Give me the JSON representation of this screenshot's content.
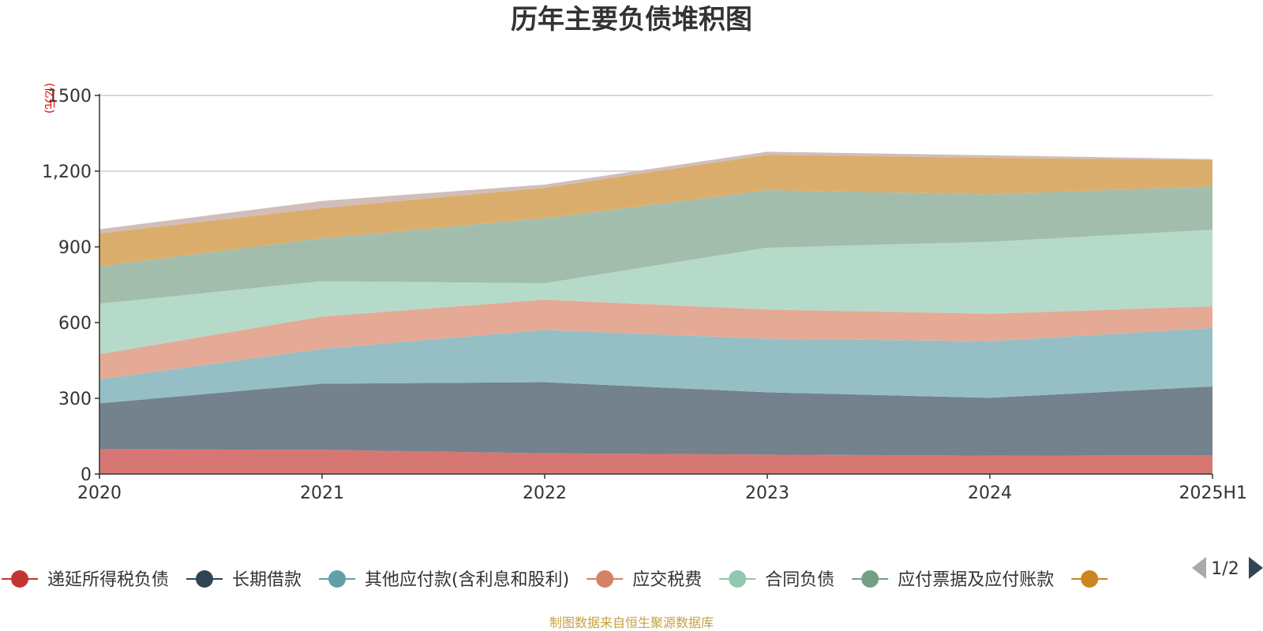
{
  "chart_data": {
    "type": "area",
    "stacked": true,
    "title": "历年主要负债堆积图",
    "ylabel": "(亿元)",
    "ylim": [
      0,
      1500
    ],
    "yticks": [
      0,
      300,
      600,
      900,
      1200,
      1500
    ],
    "ytick_labels": [
      "0",
      "300",
      "600",
      "900",
      "1,200",
      "1500"
    ],
    "categories": [
      "2020",
      "2021",
      "2022",
      "2023",
      "2024",
      "2025H1"
    ],
    "series": [
      {
        "name": "递延所得税负债",
        "values": [
          98,
          96,
          82,
          77,
          73,
          75
        ],
        "color": "#c23531",
        "fill": "#d4706c"
      },
      {
        "name": "长期借款",
        "values": [
          182,
          262,
          282,
          247,
          229,
          272
        ],
        "color": "#2f4554",
        "fill": "#6d7b87"
      },
      {
        "name": "其他应付款(含利息和股利)",
        "values": [
          95,
          138,
          207,
          212,
          224,
          232
        ],
        "color": "#61a0a8",
        "fill": "#90bcc2"
      },
      {
        "name": "应交税费",
        "values": [
          100,
          128,
          120,
          116,
          109,
          86
        ],
        "color": "#d48265",
        "fill": "#e3a590"
      },
      {
        "name": "合同负债",
        "values": [
          200,
          140,
          65,
          245,
          285,
          303
        ],
        "color": "#91c7ae",
        "fill": "#b2d8c6"
      },
      {
        "name": "应付票据及应付账款",
        "values": [
          148,
          170,
          258,
          228,
          188,
          172
        ],
        "color": "#749f83",
        "fill": "#9db9a6"
      },
      {
        "name": "",
        "values": [
          130,
          120,
          120,
          140,
          145,
          104
        ],
        "color": "#ca8622",
        "fill": "#d9a964"
      },
      {
        "name": "",
        "values": [
          17,
          28,
          13,
          12,
          10,
          4
        ],
        "color": "#bda29a",
        "fill": "#cfbab4"
      }
    ],
    "legend": {
      "position": "bottom",
      "page": "1/2",
      "visible_count": 7
    },
    "source_note": "制图数据来自恒生聚源数据库"
  }
}
